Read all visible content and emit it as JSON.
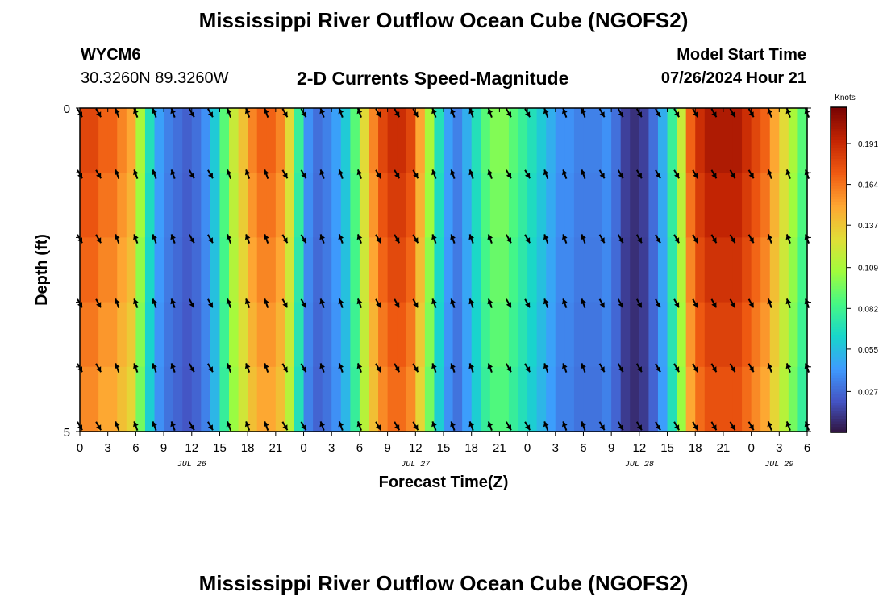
{
  "header": {
    "title": "Mississippi River Outflow Ocean Cube (NGOFS2)",
    "station_id": "WYCM6",
    "station_coords": "30.3260N  89.3260W",
    "variable_title": "2-D Currents Speed-Magnitude",
    "start_time_label": "Model Start Time",
    "start_time_value": "07/26/2024 Hour 21"
  },
  "footer": {
    "title": "Mississippi River Outflow Ocean Cube (NGOFS2)"
  },
  "chart_data": {
    "type": "heatmap",
    "title": "2-D Currents Speed-Magnitude",
    "xlabel": "Forecast Time(Z)",
    "ylabel": "Depth (ft)",
    "colorbar_label": "Knots",
    "x_tick_labels": [
      "0",
      "3",
      "6",
      "9",
      "12",
      "15",
      "18",
      "21",
      "0",
      "3",
      "6",
      "9",
      "12",
      "15",
      "18",
      "21",
      "0",
      "3",
      "6",
      "9",
      "12",
      "15",
      "18",
      "21",
      "0",
      "3",
      "6"
    ],
    "x_date_labels": [
      {
        "label": "JUL 26",
        "hour": 12
      },
      {
        "label": "JUL 27",
        "hour": 36
      },
      {
        "label": "JUL 28",
        "hour": 60
      },
      {
        "label": "JUL 29",
        "hour": 75
      }
    ],
    "x_range_hours": [
      0,
      78
    ],
    "y_range": [
      0,
      5
    ],
    "y_tick_labels": [
      "0",
      "5"
    ],
    "colorbar_ticks": [
      "0.191",
      "0.164",
      "0.137",
      "0.109",
      "0.082",
      "0.055",
      "0.027"
    ],
    "colorbar_tick_values": [
      0.191,
      0.164,
      0.137,
      0.109,
      0.082,
      0.055,
      0.027
    ],
    "colorbar_range": [
      0.0,
      0.215
    ],
    "colormap": [
      "#30123b",
      "#4454c4",
      "#3e9bfe",
      "#18d6cb",
      "#46f884",
      "#a2fc3c",
      "#e1dd37",
      "#fea632",
      "#f05b12",
      "#c42503",
      "#7a0403"
    ],
    "depth_levels": 5,
    "speed_timeseries_hours": [
      0,
      1,
      2,
      3,
      4,
      5,
      6,
      7,
      8,
      9,
      10,
      11,
      12,
      13,
      14,
      15,
      16,
      17,
      18,
      19,
      20,
      21,
      22,
      23,
      24,
      25,
      26,
      27,
      28,
      29,
      30,
      31,
      32,
      33,
      34,
      35,
      36,
      37,
      38,
      39,
      40,
      41,
      42,
      43,
      44,
      45,
      46,
      47,
      48,
      49,
      50,
      51,
      52,
      53,
      54,
      55,
      56,
      57,
      58,
      59,
      60,
      61,
      62,
      63,
      64,
      65,
      66,
      67,
      68,
      69,
      70,
      71,
      72,
      73,
      74,
      75,
      76,
      77,
      78
    ],
    "speed_timeseries_knots": [
      0.18,
      0.18,
      0.17,
      0.17,
      0.16,
      0.15,
      0.11,
      0.07,
      0.045,
      0.035,
      0.03,
      0.025,
      0.03,
      0.04,
      0.06,
      0.09,
      0.12,
      0.14,
      0.16,
      0.17,
      0.17,
      0.16,
      0.13,
      0.08,
      0.04,
      0.03,
      0.035,
      0.045,
      0.06,
      0.09,
      0.13,
      0.16,
      0.18,
      0.19,
      0.19,
      0.18,
      0.15,
      0.11,
      0.07,
      0.045,
      0.035,
      0.05,
      0.07,
      0.09,
      0.1,
      0.1,
      0.09,
      0.08,
      0.07,
      0.06,
      0.05,
      0.04,
      0.04,
      0.035,
      0.035,
      0.035,
      0.04,
      0.03,
      0.015,
      0.01,
      0.015,
      0.03,
      0.05,
      0.08,
      0.12,
      0.17,
      0.19,
      0.2,
      0.2,
      0.2,
      0.2,
      0.19,
      0.18,
      0.17,
      0.15,
      0.13,
      0.11,
      0.09,
      0.08
    ],
    "current_direction_by_hour": [
      0,
      1,
      2,
      3,
      4,
      5,
      6,
      7,
      8,
      9,
      10,
      11,
      12,
      13,
      14,
      15,
      16,
      17,
      18,
      19,
      20,
      21,
      22,
      23,
      24,
      25,
      26,
      27,
      28,
      29,
      30,
      31,
      32,
      33,
      34,
      35,
      36,
      37,
      38,
      39,
      40,
      41,
      42,
      43,
      44,
      45,
      46,
      47,
      48,
      49,
      50,
      51,
      52,
      53,
      54,
      55,
      56,
      57,
      58,
      59,
      60,
      61,
      62,
      63,
      64,
      65,
      66,
      67,
      68,
      69,
      70,
      71,
      72,
      73,
      74,
      75,
      76,
      77,
      78
    ],
    "current_direction_deg": [
      150,
      150,
      150,
      340,
      340,
      340,
      340,
      340,
      340,
      340,
      340,
      340,
      150,
      150,
      150,
      150,
      340,
      340,
      340,
      340,
      340,
      340,
      150,
      150,
      150,
      340,
      340,
      340,
      340,
      340,
      340,
      150,
      150,
      150,
      150,
      150,
      150,
      340,
      340,
      340,
      340,
      340,
      340,
      340,
      340,
      150,
      150,
      150,
      150,
      340,
      340,
      340,
      340,
      340,
      340,
      150,
      150,
      150,
      150,
      150,
      150,
      150,
      150,
      150,
      150,
      150,
      150,
      150,
      150,
      150,
      150,
      150,
      150,
      340,
      340,
      340,
      340,
      340,
      340
    ]
  }
}
